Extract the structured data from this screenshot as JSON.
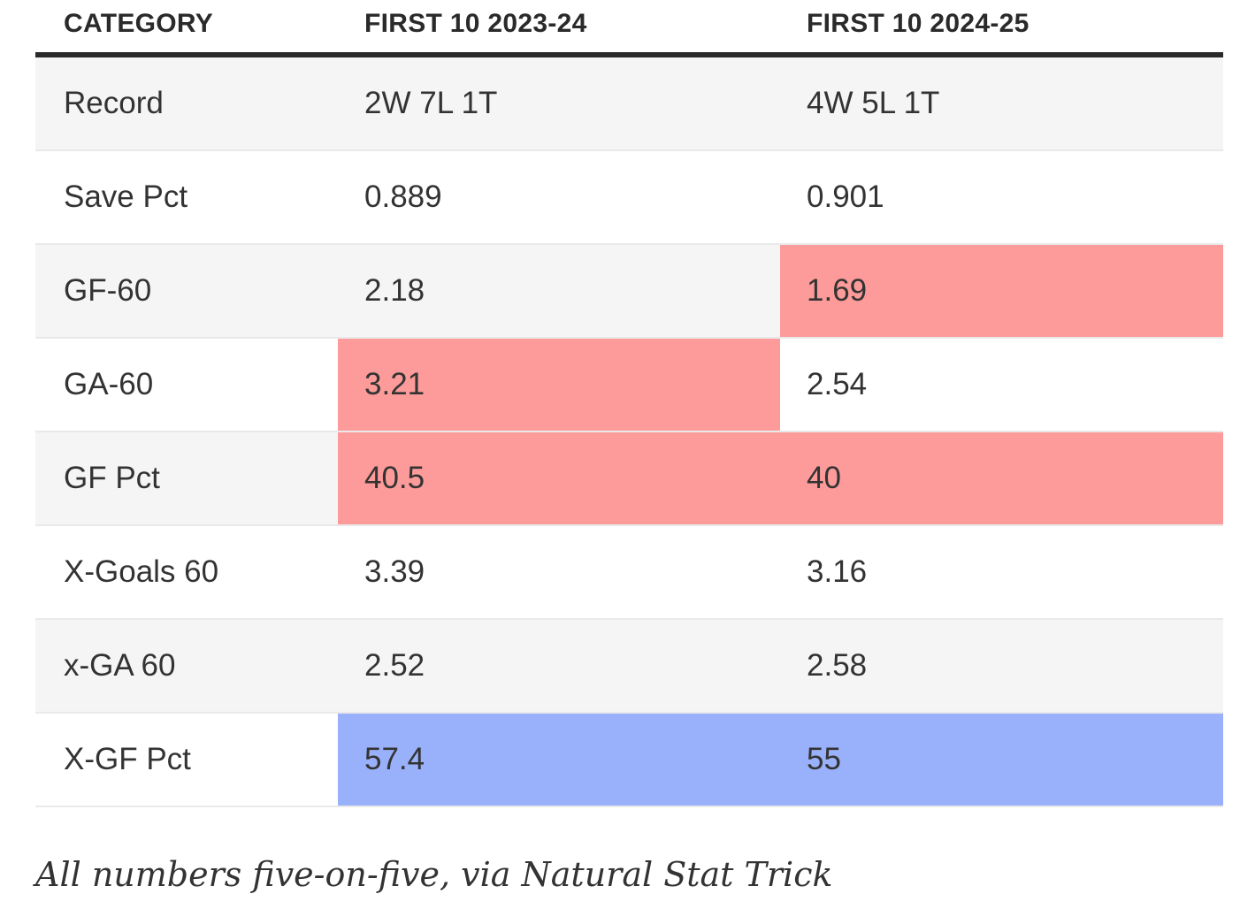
{
  "table": {
    "columns": [
      {
        "label": "CATEGORY"
      },
      {
        "label": "FIRST 10 2023-24"
      },
      {
        "label": "FIRST 10 2024-25"
      }
    ],
    "rows": [
      {
        "category": "Record",
        "values": [
          "2W 7L 1T",
          "4W 5L 1T"
        ],
        "highlights": [
          "none",
          "none"
        ]
      },
      {
        "category": "Save Pct",
        "values": [
          "0.889",
          "0.901"
        ],
        "highlights": [
          "none",
          "none"
        ]
      },
      {
        "category": "GF-60",
        "values": [
          "2.18",
          "1.69"
        ],
        "highlights": [
          "none",
          "bad"
        ]
      },
      {
        "category": "GA-60",
        "values": [
          "3.21",
          "2.54"
        ],
        "highlights": [
          "bad",
          "none"
        ]
      },
      {
        "category": "GF Pct",
        "values": [
          "40.5",
          "40"
        ],
        "highlights": [
          "bad",
          "bad"
        ]
      },
      {
        "category": "X-Goals 60",
        "values": [
          "3.39",
          "3.16"
        ],
        "highlights": [
          "none",
          "none"
        ]
      },
      {
        "category": "x-GA 60",
        "values": [
          "2.52",
          "2.58"
        ],
        "highlights": [
          "none",
          "none"
        ]
      },
      {
        "category": "X-GF Pct",
        "values": [
          "57.4",
          "55"
        ],
        "highlights": [
          "good",
          "good"
        ]
      }
    ]
  },
  "caption": "All numbers five-on-five, via Natural Stat Trick",
  "colors": {
    "highlight_bad": "#fc9b99",
    "highlight_good": "#99b1fa",
    "zebra_row": "#f5f5f5",
    "header_rule": "#2a2a2a",
    "row_divider": "#e9e9e9",
    "text": "#333333"
  },
  "chart_data": {
    "type": "table",
    "title": "",
    "columns": [
      "CATEGORY",
      "FIRST 10 2023-24",
      "FIRST 10 2024-25"
    ],
    "rows": [
      [
        "Record",
        "2W 7L 1T",
        "4W 5L 1T"
      ],
      [
        "Save Pct",
        "0.889",
        "0.901"
      ],
      [
        "GF-60",
        "2.18",
        "1.69"
      ],
      [
        "GA-60",
        "3.21",
        "2.54"
      ],
      [
        "GF Pct",
        "40.5",
        "40"
      ],
      [
        "X-Goals 60",
        "3.39",
        "3.16"
      ],
      [
        "x-GA 60",
        "2.52",
        "2.58"
      ],
      [
        "X-GF Pct",
        "57.4",
        "55"
      ]
    ],
    "highlighted_cells": [
      {
        "row": "GF-60",
        "column": "FIRST 10 2024-25",
        "color": "red"
      },
      {
        "row": "GA-60",
        "column": "FIRST 10 2023-24",
        "color": "red"
      },
      {
        "row": "GF Pct",
        "column": "FIRST 10 2023-24",
        "color": "red"
      },
      {
        "row": "GF Pct",
        "column": "FIRST 10 2024-25",
        "color": "red"
      },
      {
        "row": "X-GF Pct",
        "column": "FIRST 10 2023-24",
        "color": "blue"
      },
      {
        "row": "X-GF Pct",
        "column": "FIRST 10 2024-25",
        "color": "blue"
      }
    ],
    "caption": "All numbers five-on-five, via Natural Stat Trick"
  }
}
